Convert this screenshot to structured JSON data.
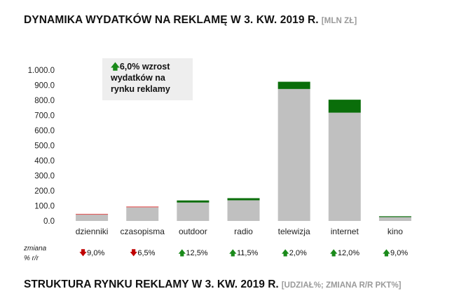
{
  "title": "DYNAMIKA WYDATKÓW NA REKLAMĘ W 3. KW. 2019 R.",
  "title_unit": "[MLN ZŁ]",
  "callout": {
    "arrow": "up",
    "lines": [
      "6,0% wzrost",
      "wydatków na",
      "rynku reklamy"
    ]
  },
  "change_label_lines": [
    "zmiana",
    "% r/r"
  ],
  "footer_title": "STRUKTURA RYNKU REKLAMY W 3. KW. 2019 R.",
  "footer_unit": "[UDZIAŁ%; ZMIANA R/R PKT%]",
  "colors": {
    "base": "#c0c0c0",
    "increase": "#0a6e0a",
    "decrease": "#e06060",
    "arrow_up": "#1a8a1a",
    "arrow_down": "#c00000"
  },
  "chart_data": {
    "type": "bar",
    "stacked": true,
    "categories": [
      "dzienniki",
      "czasopisma",
      "outdoor",
      "radio",
      "telewizja",
      "internet",
      "kino"
    ],
    "series": [
      {
        "values": [
          43,
          90,
          122,
          137,
          875,
          718,
          28
        ]
      },
      {
        "values": [
          4,
          6,
          14,
          14,
          48,
          86,
          3
        ]
      }
    ],
    "segment_kind": [
      "decrease",
      "decrease",
      "increase",
      "increase",
      "increase",
      "increase",
      "increase"
    ],
    "yticks": [
      "0.0",
      "100.0",
      "200.0",
      "300.0",
      "400.0",
      "500.0",
      "600.0",
      "700.0",
      "800.0",
      "900.0",
      "1.000.0"
    ],
    "ylim": [
      0,
      1000
    ],
    "changes": [
      {
        "dir": "down",
        "text": "9,0%"
      },
      {
        "dir": "down",
        "text": "6,5%"
      },
      {
        "dir": "up",
        "text": "12,5%"
      },
      {
        "dir": "up",
        "text": "11,5%"
      },
      {
        "dir": "up",
        "text": "2,0%"
      },
      {
        "dir": "up",
        "text": "12,0%"
      },
      {
        "dir": "up",
        "text": "9,0%"
      }
    ]
  }
}
